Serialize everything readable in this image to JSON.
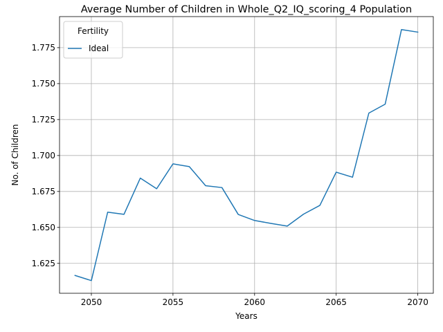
{
  "chart_data": {
    "type": "line",
    "title": "Average Number of Children in Whole_Q2_IQ_scoring_4 Population",
    "xlabel": "Years",
    "ylabel": "No. of Children",
    "xlim": [
      2048.05,
      2070.95
    ],
    "ylim": [
      1.6042,
      1.7966
    ],
    "xticks": [
      2050,
      2055,
      2060,
      2065,
      2070
    ],
    "xtick_labels": [
      "2050",
      "2055",
      "2060",
      "2065",
      "2070"
    ],
    "yticks": [
      1.625,
      1.65,
      1.675,
      1.7,
      1.725,
      1.75,
      1.775
    ],
    "ytick_labels": [
      "1.625",
      "1.650",
      "1.675",
      "1.700",
      "1.725",
      "1.750",
      "1.775"
    ],
    "grid": true,
    "legend": {
      "title": "Fertility",
      "placement": "top-left"
    },
    "series": [
      {
        "name": "Ideal",
        "color": "#1f77b4",
        "x": [
          2049,
          2050,
          2051,
          2052,
          2053,
          2054,
          2055,
          2056,
          2057,
          2058,
          2059,
          2060,
          2061,
          2062,
          2063,
          2064,
          2065,
          2066,
          2067,
          2068,
          2069,
          2070
        ],
        "y": [
          1.6166,
          1.613,
          1.6606,
          1.6591,
          1.6843,
          1.6769,
          1.6942,
          1.6923,
          1.679,
          1.6777,
          1.659,
          1.6548,
          1.6528,
          1.6509,
          1.6592,
          1.6653,
          1.6884,
          1.6849,
          1.7295,
          1.7357,
          1.7876,
          1.7858
        ]
      }
    ]
  }
}
